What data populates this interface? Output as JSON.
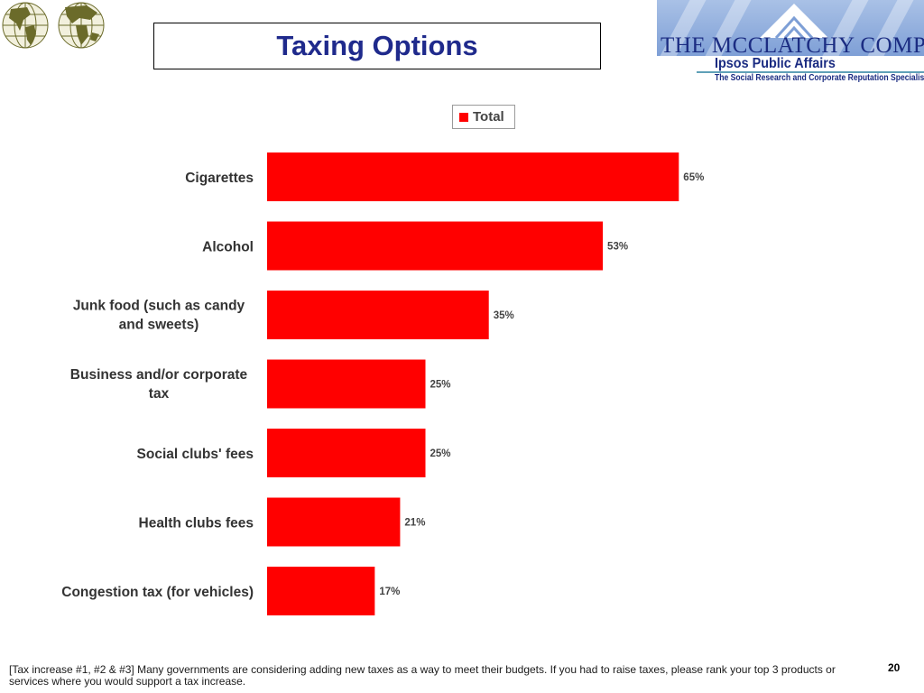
{
  "slide": {
    "title": "Taxing Options",
    "footnote": "[Tax increase #1, #2 & #3] Many governments are considering adding new taxes as a way to meet their budgets. If you had to raise taxes, please rank your top 3 products or services where you would support a tax increase.",
    "page_number": "20"
  },
  "branding": {
    "company": "THE MCCLATCHY COMPANY",
    "ipsos": "Ipsos Public Affairs",
    "tagline": "The Social Research and Corporate Reputation Specialists",
    "logo_left_icon": "globe-grid-icon",
    "logo_right_icon": "house-roof-icon"
  },
  "legend": {
    "label": "Total"
  },
  "colors": {
    "bar": "#ff0000",
    "title": "#1f2a8c",
    "brand_blue": "#1b2c82"
  },
  "chart_data": {
    "type": "bar",
    "orientation": "horizontal",
    "categories": [
      [
        "Cigarettes"
      ],
      [
        "Alcohol"
      ],
      [
        "Junk food (such as candy",
        "and sweets)"
      ],
      [
        "Business and/or corporate",
        "tax"
      ],
      [
        "Social clubs' fees"
      ],
      [
        "Health clubs fees"
      ],
      [
        "Congestion tax (for vehicles)"
      ]
    ],
    "series": [
      {
        "name": "Total",
        "values": [
          65,
          53,
          35,
          25,
          25,
          21,
          17
        ]
      }
    ],
    "value_labels": [
      "65%",
      "53%",
      "35%",
      "25%",
      "25%",
      "21%",
      "17%"
    ],
    "xlim": [
      0,
      100
    ],
    "unit": "%",
    "legend_position": "top",
    "grid": false
  }
}
